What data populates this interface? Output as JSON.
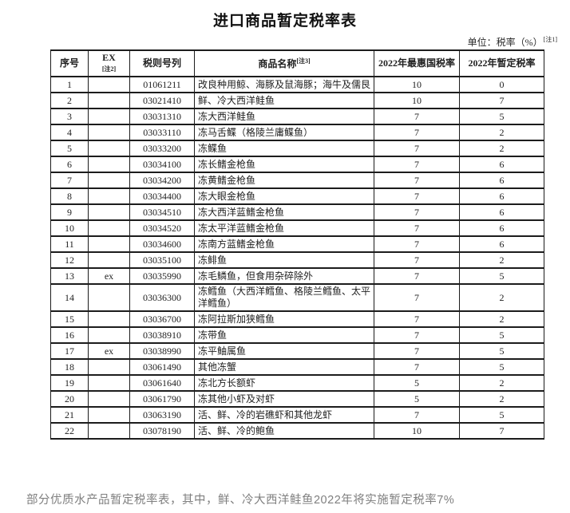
{
  "title": "进口商品暂定税率表",
  "unit": {
    "label": "单位：税率（%）",
    "note": "[注1]"
  },
  "table": {
    "columns": [
      {
        "key": "no",
        "label": "序号"
      },
      {
        "key": "ex",
        "label": "EX",
        "note": "[注2]"
      },
      {
        "key": "code",
        "label": "税则号列"
      },
      {
        "key": "name",
        "label": "商品名称",
        "note": "[注3]"
      },
      {
        "key": "mfn",
        "label": "2022年最惠国税率"
      },
      {
        "key": "tmp",
        "label": "2022年暂定税率"
      }
    ],
    "rows": [
      {
        "no": "1",
        "ex": "",
        "code": "01061211",
        "name": "改良种用鲸、海豚及鼠海豚；海牛及儒艮",
        "mfn": "10",
        "tmp": "0"
      },
      {
        "no": "2",
        "ex": "",
        "code": "03021410",
        "name": "鲜、冷大西洋鲑鱼",
        "mfn": "10",
        "tmp": "7"
      },
      {
        "no": "3",
        "ex": "",
        "code": "03031310",
        "name": "冻大西洋鲑鱼",
        "mfn": "7",
        "tmp": "5"
      },
      {
        "no": "4",
        "ex": "",
        "code": "03033110",
        "name": "冻马舌鲽（格陵兰庸鲽鱼）",
        "mfn": "7",
        "tmp": "2"
      },
      {
        "no": "5",
        "ex": "",
        "code": "03033200",
        "name": "冻鲽鱼",
        "mfn": "7",
        "tmp": "2"
      },
      {
        "no": "6",
        "ex": "",
        "code": "03034100",
        "name": "冻长鳍金枪鱼",
        "mfn": "7",
        "tmp": "6"
      },
      {
        "no": "7",
        "ex": "",
        "code": "03034200",
        "name": "冻黄鳍金枪鱼",
        "mfn": "7",
        "tmp": "6"
      },
      {
        "no": "8",
        "ex": "",
        "code": "03034400",
        "name": "冻大眼金枪鱼",
        "mfn": "7",
        "tmp": "6"
      },
      {
        "no": "9",
        "ex": "",
        "code": "03034510",
        "name": "冻大西洋蓝鳍金枪鱼",
        "mfn": "7",
        "tmp": "6"
      },
      {
        "no": "10",
        "ex": "",
        "code": "03034520",
        "name": "冻太平洋蓝鳍金枪鱼",
        "mfn": "7",
        "tmp": "6"
      },
      {
        "no": "11",
        "ex": "",
        "code": "03034600",
        "name": "冻南方蓝鳍金枪鱼",
        "mfn": "7",
        "tmp": "6"
      },
      {
        "no": "12",
        "ex": "",
        "code": "03035100",
        "name": "冻鲱鱼",
        "mfn": "7",
        "tmp": "2"
      },
      {
        "no": "13",
        "ex": "ex",
        "code": "03035990",
        "name": "冻毛鳞鱼，但食用杂碎除外",
        "mfn": "7",
        "tmp": "5"
      },
      {
        "no": "14",
        "ex": "",
        "code": "03036300",
        "name": "冻鳕鱼（大西洋鳕鱼、格陵兰鳕鱼、太平洋鳕鱼）",
        "mfn": "7",
        "tmp": "2"
      },
      {
        "no": "15",
        "ex": "",
        "code": "03036700",
        "name": "冻阿拉斯加狭鳕鱼",
        "mfn": "7",
        "tmp": "2"
      },
      {
        "no": "16",
        "ex": "",
        "code": "03038910",
        "name": "冻带鱼",
        "mfn": "7",
        "tmp": "5"
      },
      {
        "no": "17",
        "ex": "ex",
        "code": "03038990",
        "name": "冻平鲉属鱼",
        "mfn": "7",
        "tmp": "5"
      },
      {
        "no": "18",
        "ex": "",
        "code": "03061490",
        "name": "其他冻蟹",
        "mfn": "7",
        "tmp": "5"
      },
      {
        "no": "19",
        "ex": "",
        "code": "03061640",
        "name": "冻北方长额虾",
        "mfn": "5",
        "tmp": "2"
      },
      {
        "no": "20",
        "ex": "",
        "code": "03061790",
        "name": "冻其他小虾及对虾",
        "mfn": "5",
        "tmp": "2"
      },
      {
        "no": "21",
        "ex": "",
        "code": "03063190",
        "name": "活、鲜、冷的岩礁虾和其他龙虾",
        "mfn": "7",
        "tmp": "5"
      },
      {
        "no": "22",
        "ex": "",
        "code": "03078190",
        "name": "活、鲜、冷的鲍鱼",
        "mfn": "10",
        "tmp": "7"
      }
    ]
  },
  "footer_note": "部分优质水产品暂定税率表，其中，鲜、冷大西洋鲑鱼2022年将实施暂定税率7%"
}
